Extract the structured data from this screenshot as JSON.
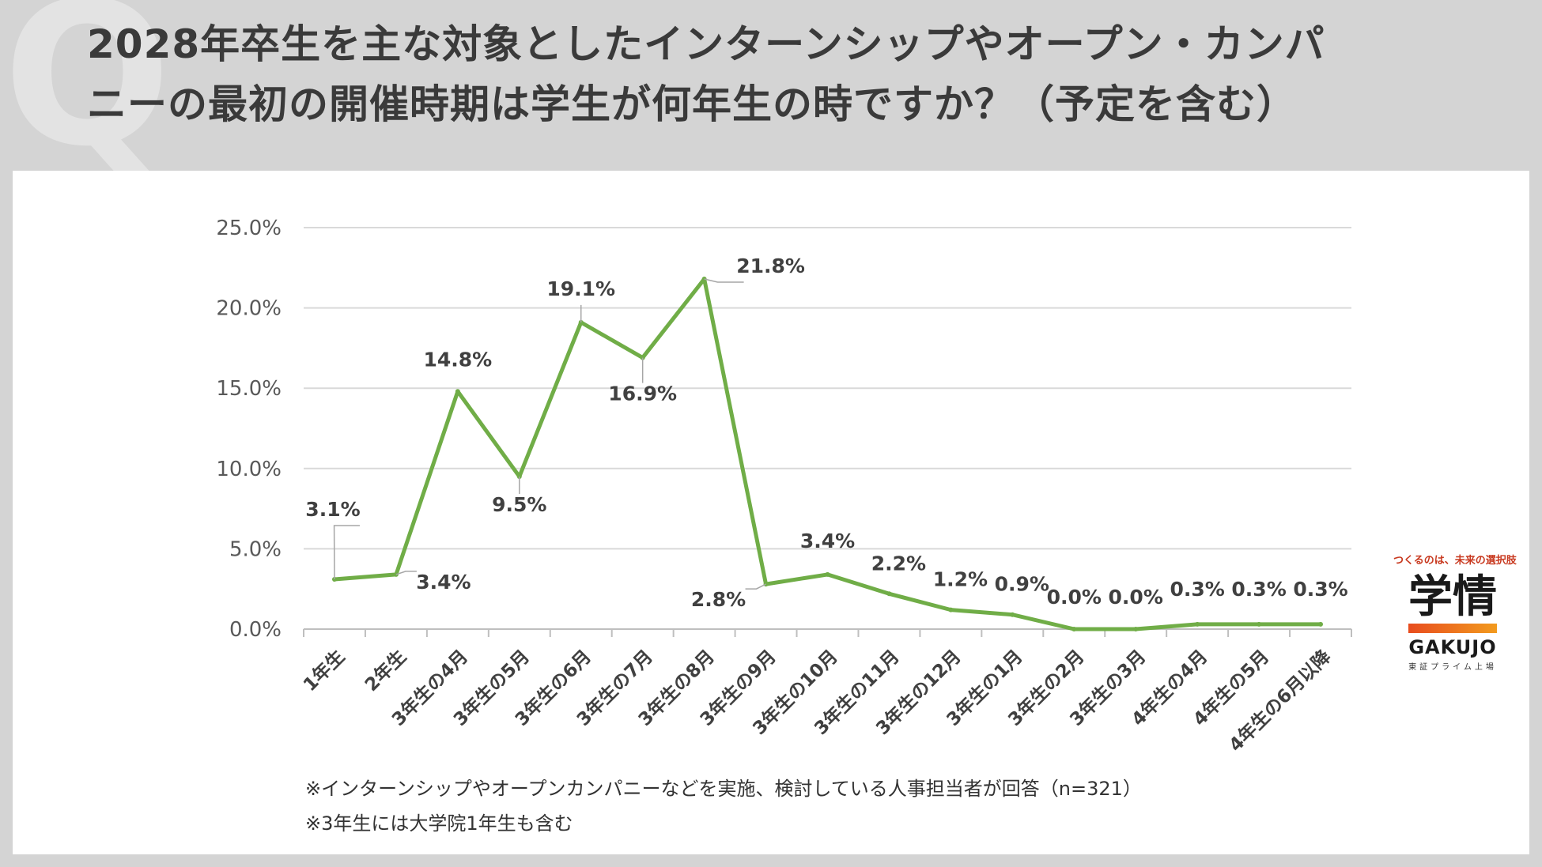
{
  "header": {
    "q_mark": "Q",
    "title_line1": "2028年卒生を主な対象としたインターンシップやオープン・カンパ",
    "title_line2": "ニーの最初の開催時期は学生が何年生の時ですか？（予定を含む）"
  },
  "chart_data": {
    "type": "line",
    "title": "",
    "xlabel": "",
    "ylabel": "",
    "categories": [
      "1年生",
      "2年生",
      "3年生の4月",
      "3年生の5月",
      "3年生の6月",
      "3年生の7月",
      "3年生の8月",
      "3年生の9月",
      "3年生の10月",
      "3年生の11月",
      "3年生の12月",
      "3年生の1月",
      "3年生の2月",
      "3年生の3月",
      "4年生の4月",
      "4年生の5月",
      "4年生の6月以降"
    ],
    "values": [
      3.1,
      3.4,
      14.8,
      9.5,
      19.1,
      16.9,
      21.8,
      2.8,
      3.4,
      2.2,
      1.2,
      0.9,
      0.0,
      0.0,
      0.3,
      0.3,
      0.3
    ],
    "data_labels": [
      "3.1%",
      "3.4%",
      "14.8%",
      "9.5%",
      "19.1%",
      "16.9%",
      "21.8%",
      "2.8%",
      "3.4%",
      "2.2%",
      "1.2%",
      "0.9%",
      "0.0%",
      "0.0%",
      "0.3%",
      "0.3%",
      "0.3%"
    ],
    "ylim": [
      0,
      25
    ],
    "yticks": [
      "0.0%",
      "5.0%",
      "10.0%",
      "15.0%",
      "20.0%",
      "25.0%"
    ],
    "grid": true,
    "line_color": "#70ad47"
  },
  "notes": {
    "note1": "※インターンシップやオープンカンパニーなどを実施、検討している人事担当者が回答（n=321）",
    "note2": "※3年生には大学院1年生も含む"
  },
  "logo": {
    "tagline": "つくるのは、未来の選択肢",
    "kanji": "学情",
    "roman": "GAKUJO",
    "listed": "東証プライム上場"
  }
}
